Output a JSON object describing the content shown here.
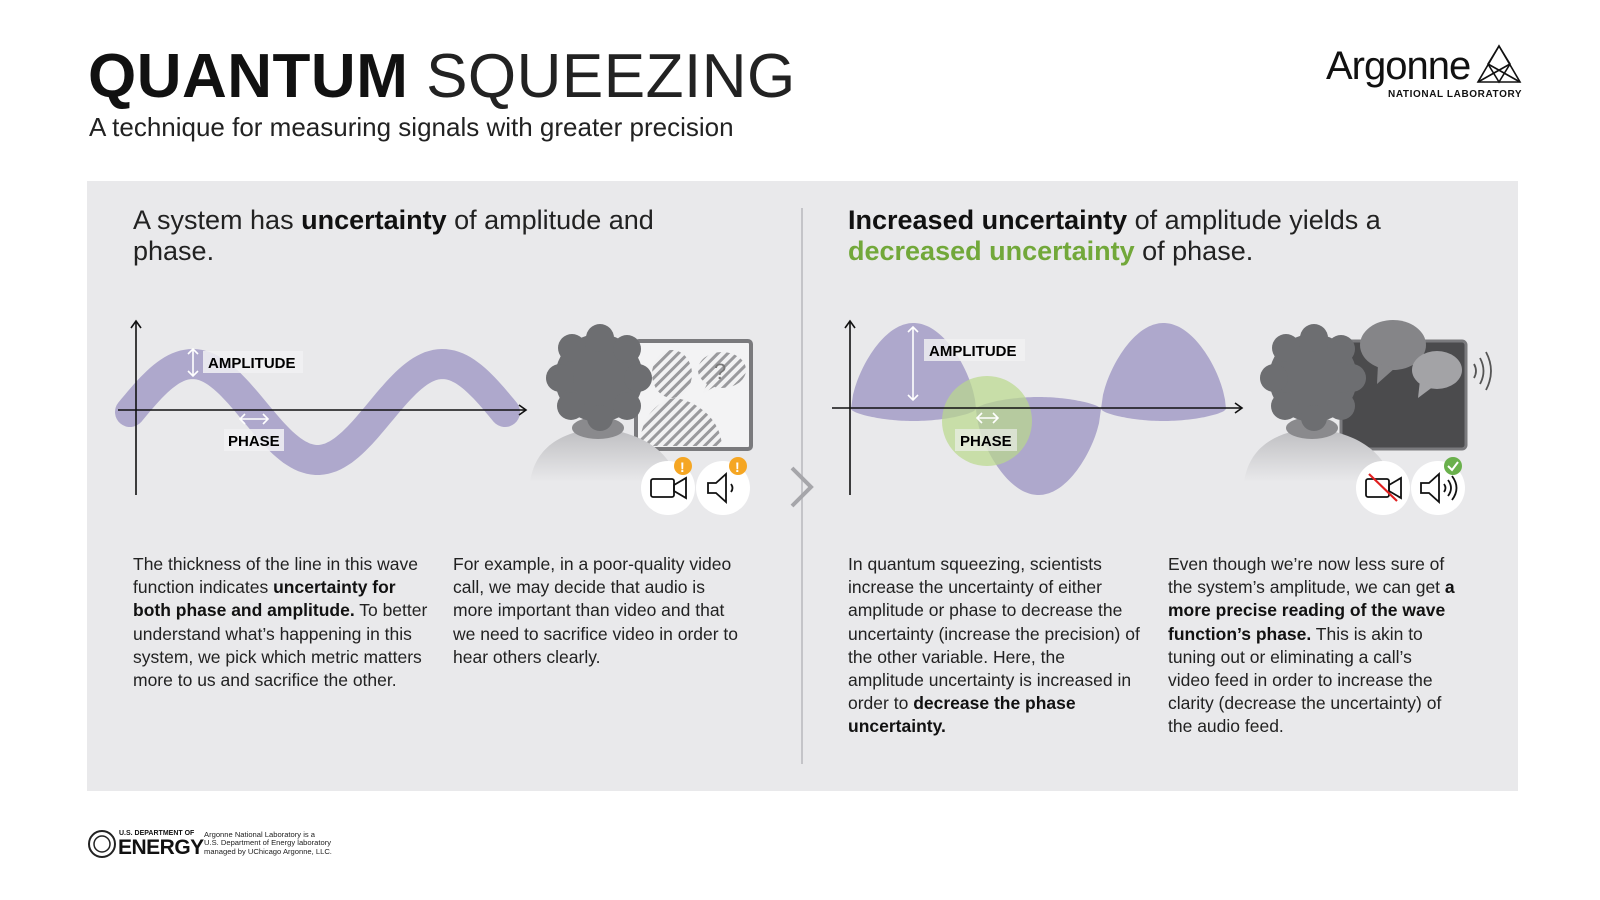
{
  "header": {
    "title_bold": "QUANTUM",
    "title_light": "SQUEEZING",
    "subtitle": "A technique for measuring signals with greater precision"
  },
  "logo": {
    "name": "Argonne",
    "tagline": "NATIONAL LABORATORY"
  },
  "left": {
    "heading": [
      {
        "text": "A system has ",
        "bold": false
      },
      {
        "text": "uncertainty",
        "bold": true
      },
      {
        "text": " of amplitude and phase.",
        "bold": false
      }
    ],
    "diagram": {
      "amplitude_label": "AMPLITUDE",
      "phase_label": "PHASE",
      "wave_color": "#aea8cc"
    },
    "video_call": {
      "video_status": "warning",
      "audio_status": "warning",
      "bubble_glyph": "?",
      "badge_color": "#f5a623"
    },
    "para1": [
      {
        "text": "The thickness of the line in this wave function indicates ",
        "bold": false
      },
      {
        "text": "uncertainty for both phase and amplitude.",
        "bold": true
      },
      {
        "text": " To better understand what’s happening in this system, we pick which metric matters more to us and sacrifice the other.",
        "bold": false
      }
    ],
    "para2": [
      {
        "text": "For example, in a poor-quality video call, we may decide that audio is more important than video and that we need to sacrifice video in order to hear others clearly.",
        "bold": false
      }
    ]
  },
  "right": {
    "heading": [
      {
        "text": "Increased uncertainty",
        "bold": true
      },
      {
        "text": " of amplitude yields a ",
        "bold": false
      },
      {
        "text": "decreased uncertainty",
        "green": true
      },
      {
        "text": " of phase.",
        "bold": false
      }
    ],
    "diagram": {
      "amplitude_label": "AMPLITUDE",
      "phase_label": "PHASE",
      "wave_color": "#aea8cc",
      "phase_circle_color": "#b9d88c"
    },
    "video_call": {
      "video_status": "muted",
      "audio_status": "ok",
      "badge_color": "#6ab04c"
    },
    "para1": [
      {
        "text": "In quantum squeezing, scientists increase the uncertainty of either amplitude or phase to decrease the uncertainty (increase the precision) of the other variable. Here, the amplitude uncertainty is increased in order to ",
        "bold": false
      },
      {
        "text": "decrease the phase uncertainty.",
        "bold": true
      }
    ],
    "para2": [
      {
        "text": "Even though we’re now less sure of the system’s amplitude, we can get ",
        "bold": false
      },
      {
        "text": "a more precise reading of the wave function’s phase.",
        "bold": true
      },
      {
        "text": " This is akin to tuning out or eliminating a call’s video feed in order to increase the clarity (decrease the uncertainty) of the audio feed.",
        "bold": false
      }
    ]
  },
  "footer": {
    "doe_top": "U.S. DEPARTMENT OF",
    "doe_main": "ENERGY",
    "note_lines": [
      "Argonne National Laboratory is a",
      "U.S. Department of Energy laboratory",
      "managed by UChicago Argonne, LLC."
    ]
  }
}
